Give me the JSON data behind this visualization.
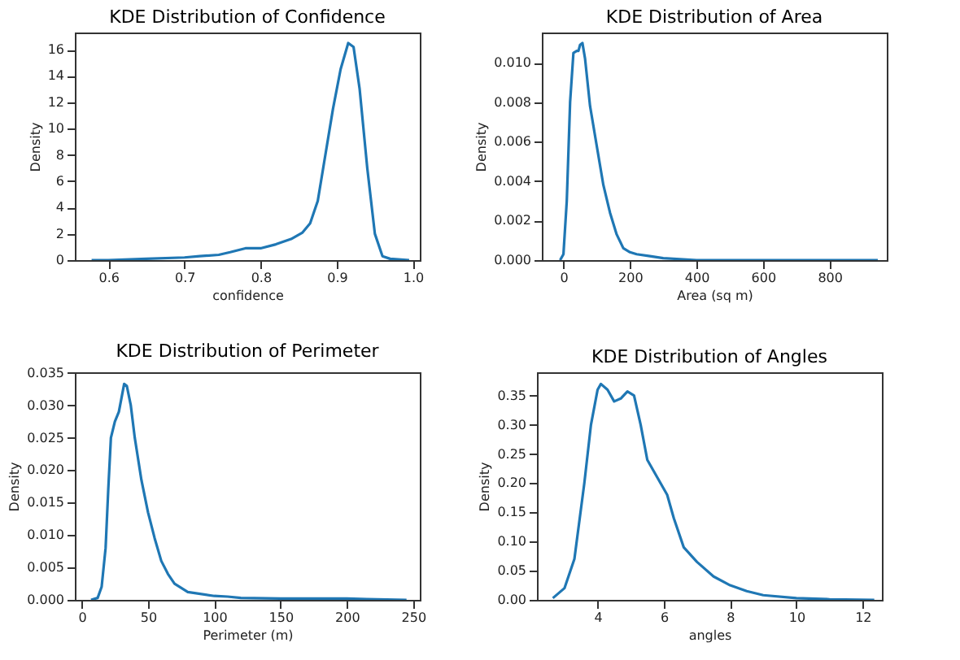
{
  "chart_data": [
    {
      "type": "line",
      "title": "KDE Distribution of Confidence",
      "xlabel": "confidence",
      "ylabel": "Density",
      "grid": false,
      "x": [
        0.578,
        0.6,
        0.65,
        0.7,
        0.72,
        0.745,
        0.76,
        0.78,
        0.8,
        0.82,
        0.84,
        0.855,
        0.865,
        0.875,
        0.885,
        0.895,
        0.905,
        0.915,
        0.922,
        0.93,
        0.94,
        0.95,
        0.96,
        0.97,
        0.995
      ],
      "series": [
        {
          "color": "#1f77b4",
          "values": [
            0,
            0,
            0.1,
            0.2,
            0.3,
            0.4,
            0.6,
            0.9,
            0.9,
            1.2,
            1.6,
            2.1,
            2.8,
            4.5,
            8,
            11.5,
            14.5,
            16.5,
            16.2,
            13,
            7,
            2,
            0.3,
            0.1,
            0
          ]
        }
      ],
      "xlim": [
        0.556,
        1.009
      ],
      "ylim": [
        0,
        17.3
      ],
      "xticks": [
        {
          "value": 0.6,
          "label": "0.6"
        },
        {
          "value": 0.7,
          "label": "0.7"
        },
        {
          "value": 0.8,
          "label": "0.8"
        },
        {
          "value": 0.9,
          "label": "0.9"
        },
        {
          "value": 1.0,
          "label": "1.0"
        }
      ],
      "yticks": [
        0,
        2,
        4,
        6,
        8,
        10,
        12,
        14,
        16
      ]
    },
    {
      "type": "line",
      "title": "KDE Distribution of Area",
      "xlabel": "Area (sq m)",
      "ylabel": "Density",
      "grid": false,
      "x": [
        -10,
        0,
        10,
        20,
        30,
        40,
        45,
        50,
        57,
        65,
        80,
        100,
        120,
        140,
        160,
        180,
        200,
        220,
        260,
        300,
        400,
        600,
        945
      ],
      "series": [
        {
          "color": "#1f77b4",
          "values": [
            0,
            0.0003,
            0.003,
            0.008,
            0.0105,
            0.0106,
            0.0106,
            0.0109,
            0.011,
            0.0102,
            0.0078,
            0.0058,
            0.0038,
            0.0024,
            0.0013,
            0.0006,
            0.0004,
            0.0003,
            0.0002,
            0.0001,
            0,
            0,
            0
          ]
        }
      ],
      "xlim": [
        -65,
        972
      ],
      "ylim": [
        0,
        0.01153
      ],
      "xticks": [
        0,
        200,
        400,
        600,
        800
      ],
      "yticks": [
        {
          "value": 0,
          "label": "0.000"
        },
        {
          "value": 0.002,
          "label": "0.002"
        },
        {
          "value": 0.004,
          "label": "0.004"
        },
        {
          "value": 0.006,
          "label": "0.006"
        },
        {
          "value": 0.008,
          "label": "0.008"
        },
        {
          "value": 0.01,
          "label": "0.010"
        }
      ]
    },
    {
      "type": "line",
      "title": "KDE Distribution of Perimeter",
      "xlabel": "Perimeter (m)",
      "ylabel": "Density",
      "grid": false,
      "x": [
        7,
        12,
        15,
        18,
        20,
        22,
        25,
        28,
        32,
        34,
        37,
        40,
        45,
        50,
        55,
        60,
        65,
        70,
        80,
        100,
        110,
        120,
        150,
        200,
        215,
        245
      ],
      "series": [
        {
          "color": "#1f77b4",
          "values": [
            0,
            0.0003,
            0.002,
            0.008,
            0.017,
            0.025,
            0.0275,
            0.029,
            0.0333,
            0.033,
            0.03,
            0.025,
            0.0185,
            0.0135,
            0.0095,
            0.006,
            0.004,
            0.0025,
            0.0012,
            0.0006,
            0.0005,
            0.0003,
            0.0002,
            0.0002,
            0.0001,
            0
          ]
        }
      ],
      "xlim": [
        -5.2,
        255
      ],
      "ylim": [
        0,
        0.0351
      ],
      "xticks": [
        0,
        50,
        100,
        150,
        200,
        250
      ],
      "yticks": [
        {
          "value": 0,
          "label": "0.000"
        },
        {
          "value": 0.005,
          "label": "0.005"
        },
        {
          "value": 0.01,
          "label": "0.010"
        },
        {
          "value": 0.015,
          "label": "0.015"
        },
        {
          "value": 0.02,
          "label": "0.020"
        },
        {
          "value": 0.025,
          "label": "0.025"
        },
        {
          "value": 0.03,
          "label": "0.030"
        },
        {
          "value": 0.035,
          "label": "0.035"
        }
      ]
    },
    {
      "type": "line",
      "title": "KDE Distribution of Angles",
      "xlabel": "angles",
      "ylabel": "Density",
      "grid": false,
      "x": [
        2.65,
        3,
        3.3,
        3.6,
        3.8,
        4,
        4.1,
        4.3,
        4.5,
        4.7,
        4.9,
        5.1,
        5.3,
        5.5,
        5.8,
        6.1,
        6.3,
        6.6,
        7,
        7.5,
        8,
        8.5,
        9,
        10,
        11,
        12.35
      ],
      "series": [
        {
          "color": "#1f77b4",
          "values": [
            0.003,
            0.02,
            0.07,
            0.2,
            0.3,
            0.36,
            0.37,
            0.36,
            0.34,
            0.345,
            0.357,
            0.35,
            0.3,
            0.24,
            0.21,
            0.18,
            0.14,
            0.09,
            0.065,
            0.04,
            0.025,
            0.015,
            0.008,
            0.003,
            0.001,
            0
          ]
        }
      ],
      "xlim": [
        2.17,
        12.58
      ],
      "ylim": [
        0,
        0.39
      ],
      "xticks": [
        4,
        6,
        8,
        10,
        12
      ],
      "yticks": [
        {
          "value": 0,
          "label": "0.00"
        },
        {
          "value": 0.05,
          "label": "0.05"
        },
        {
          "value": 0.1,
          "label": "0.10"
        },
        {
          "value": 0.15,
          "label": "0.15"
        },
        {
          "value": 0.2,
          "label": "0.20"
        },
        {
          "value": 0.25,
          "label": "0.25"
        },
        {
          "value": 0.3,
          "label": "0.30"
        },
        {
          "value": 0.35,
          "label": "0.35"
        }
      ]
    }
  ]
}
